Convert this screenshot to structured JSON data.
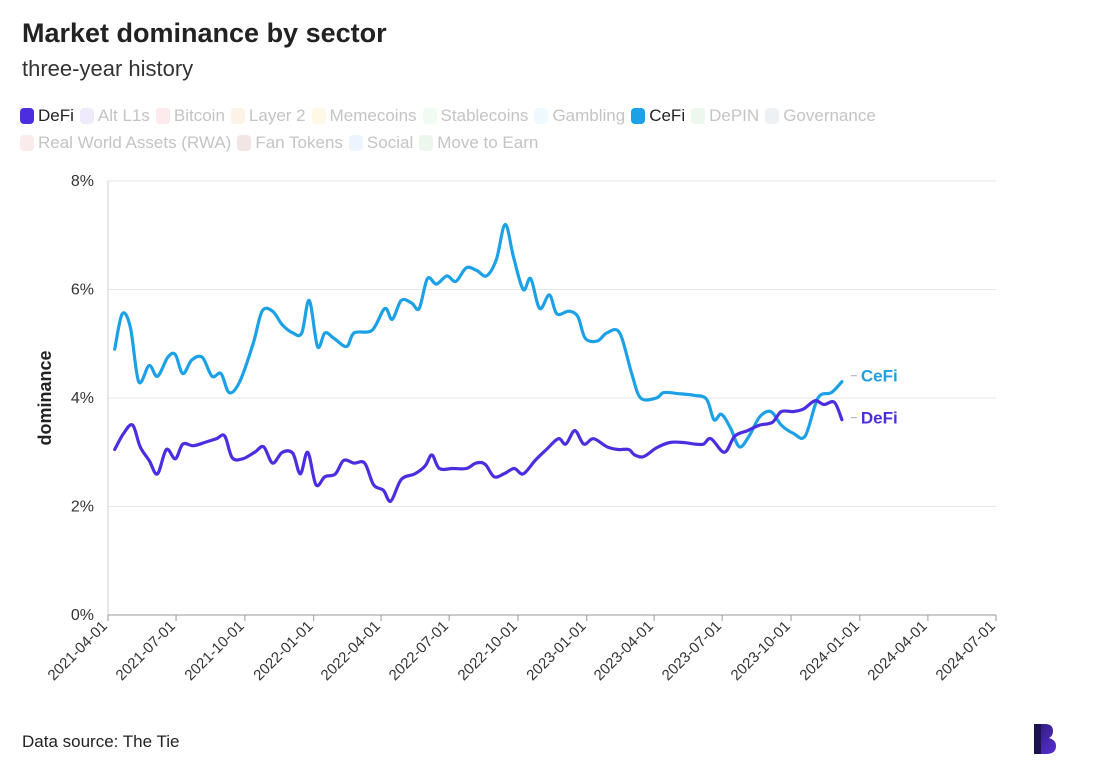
{
  "header": {
    "title": "Market dominance by sector",
    "subtitle": "three-year history"
  },
  "legend": [
    {
      "label": "DeFi",
      "color": "#4c2ee0",
      "active": true
    },
    {
      "label": "Alt L1s",
      "color": "#c6b6f5",
      "active": false
    },
    {
      "label": "Bitcoin",
      "color": "#f7b3b3",
      "active": false
    },
    {
      "label": "Layer 2",
      "color": "#f9cfa5",
      "active": false
    },
    {
      "label": "Memecoins",
      "color": "#fbe6a6",
      "active": false
    },
    {
      "label": "Stablecoins",
      "color": "#c9efcf",
      "active": false
    },
    {
      "label": "Gambling",
      "color": "#bfe9f7",
      "active": false
    },
    {
      "label": "CeFi",
      "color": "#1da1e6",
      "active": true
    },
    {
      "label": "DePIN",
      "color": "#b9e3c0",
      "active": false
    },
    {
      "label": "Governance",
      "color": "#b7cdd8",
      "active": false
    },
    {
      "label": "Real World Assets (RWA)",
      "color": "#f2b8b8",
      "active": false
    },
    {
      "label": "Fan Tokens",
      "color": "#cfa3a3",
      "active": false
    },
    {
      "label": "Social",
      "color": "#bcd6f7",
      "active": false
    },
    {
      "label": "Move to Earn",
      "color": "#bfe0bb",
      "active": false
    }
  ],
  "chart_data": {
    "type": "line",
    "ylabel": "dominance",
    "xlabel": "",
    "y_unit": "%",
    "ylim": [
      0,
      8
    ],
    "y_ticks": [
      "0%",
      "2%",
      "4%",
      "6%",
      "8%"
    ],
    "xlim": [
      "2021-04-01",
      "2024-07-01"
    ],
    "x_ticks": [
      "2021-04-01",
      "2021-07-01",
      "2021-10-01",
      "2022-01-01",
      "2022-04-01",
      "2022-07-01",
      "2022-10-01",
      "2023-01-01",
      "2023-04-01",
      "2023-07-01",
      "2023-10-01",
      "2024-01-01",
      "2024-04-01",
      "2024-07-01"
    ],
    "grid": true,
    "series": [
      {
        "name": "CeFi",
        "color": "#1da1e6",
        "points": [
          [
            "2021-04-10",
            4.9
          ],
          [
            "2021-04-20",
            5.55
          ],
          [
            "2021-05-01",
            5.3
          ],
          [
            "2021-05-12",
            4.3
          ],
          [
            "2021-05-26",
            4.6
          ],
          [
            "2021-06-06",
            4.4
          ],
          [
            "2021-06-20",
            4.75
          ],
          [
            "2021-06-30",
            4.8
          ],
          [
            "2021-07-10",
            4.45
          ],
          [
            "2021-07-22",
            4.7
          ],
          [
            "2021-08-05",
            4.75
          ],
          [
            "2021-08-18",
            4.4
          ],
          [
            "2021-08-30",
            4.45
          ],
          [
            "2021-09-10",
            4.1
          ],
          [
            "2021-09-24",
            4.3
          ],
          [
            "2021-10-12",
            5.0
          ],
          [
            "2021-10-24",
            5.6
          ],
          [
            "2021-11-07",
            5.6
          ],
          [
            "2021-11-20",
            5.35
          ],
          [
            "2021-12-04",
            5.2
          ],
          [
            "2021-12-16",
            5.2
          ],
          [
            "2021-12-26",
            5.8
          ],
          [
            "2022-01-06",
            4.95
          ],
          [
            "2022-01-16",
            5.2
          ],
          [
            "2022-01-28",
            5.1
          ],
          [
            "2022-02-14",
            4.95
          ],
          [
            "2022-02-24",
            5.2
          ],
          [
            "2022-03-20",
            5.25
          ],
          [
            "2022-04-06",
            5.65
          ],
          [
            "2022-04-16",
            5.45
          ],
          [
            "2022-04-28",
            5.8
          ],
          [
            "2022-05-12",
            5.75
          ],
          [
            "2022-05-22",
            5.65
          ],
          [
            "2022-06-02",
            6.2
          ],
          [
            "2022-06-14",
            6.1
          ],
          [
            "2022-06-28",
            6.25
          ],
          [
            "2022-07-10",
            6.15
          ],
          [
            "2022-07-24",
            6.4
          ],
          [
            "2022-08-07",
            6.35
          ],
          [
            "2022-08-20",
            6.25
          ],
          [
            "2022-09-02",
            6.55
          ],
          [
            "2022-09-14",
            7.2
          ],
          [
            "2022-09-25",
            6.6
          ],
          [
            "2022-10-08",
            6.0
          ],
          [
            "2022-10-18",
            6.2
          ],
          [
            "2022-10-30",
            5.65
          ],
          [
            "2022-11-12",
            5.9
          ],
          [
            "2022-11-22",
            5.55
          ],
          [
            "2022-12-08",
            5.6
          ],
          [
            "2022-12-20",
            5.5
          ],
          [
            "2022-12-30",
            5.1
          ],
          [
            "2023-01-15",
            5.05
          ],
          [
            "2023-01-28",
            5.2
          ],
          [
            "2023-02-14",
            5.2
          ],
          [
            "2023-03-02",
            4.45
          ],
          [
            "2023-03-14",
            4.0
          ],
          [
            "2023-04-04",
            4.0
          ],
          [
            "2023-04-14",
            4.1
          ],
          [
            "2023-05-04",
            4.08
          ],
          [
            "2023-05-24",
            4.05
          ],
          [
            "2023-06-10",
            3.98
          ],
          [
            "2023-06-20",
            3.6
          ],
          [
            "2023-06-30",
            3.7
          ],
          [
            "2023-07-12",
            3.45
          ],
          [
            "2023-07-24",
            3.1
          ],
          [
            "2023-08-06",
            3.3
          ],
          [
            "2023-08-20",
            3.65
          ],
          [
            "2023-09-04",
            3.75
          ],
          [
            "2023-09-18",
            3.5
          ],
          [
            "2023-10-04",
            3.35
          ],
          [
            "2023-10-20",
            3.3
          ],
          [
            "2023-11-06",
            4.0
          ],
          [
            "2023-11-24",
            4.1
          ],
          [
            "2023-12-08",
            4.3
          ]
        ]
      },
      {
        "name": "DeFi",
        "color": "#4c2ee0",
        "points": [
          [
            "2021-04-10",
            3.05
          ],
          [
            "2021-04-22",
            3.35
          ],
          [
            "2021-05-04",
            3.5
          ],
          [
            "2021-05-14",
            3.1
          ],
          [
            "2021-05-26",
            2.85
          ],
          [
            "2021-06-06",
            2.6
          ],
          [
            "2021-06-18",
            3.05
          ],
          [
            "2021-06-30",
            2.88
          ],
          [
            "2021-07-10",
            3.15
          ],
          [
            "2021-07-24",
            3.12
          ],
          [
            "2021-08-08",
            3.18
          ],
          [
            "2021-08-24",
            3.25
          ],
          [
            "2021-09-04",
            3.3
          ],
          [
            "2021-09-14",
            2.9
          ],
          [
            "2021-09-28",
            2.88
          ],
          [
            "2021-10-14",
            3.0
          ],
          [
            "2021-10-26",
            3.1
          ],
          [
            "2021-11-07",
            2.8
          ],
          [
            "2021-11-20",
            3.0
          ],
          [
            "2021-12-04",
            2.98
          ],
          [
            "2021-12-14",
            2.6
          ],
          [
            "2021-12-24",
            3.0
          ],
          [
            "2022-01-04",
            2.4
          ],
          [
            "2022-01-16",
            2.55
          ],
          [
            "2022-01-30",
            2.6
          ],
          [
            "2022-02-10",
            2.85
          ],
          [
            "2022-02-24",
            2.8
          ],
          [
            "2022-03-10",
            2.8
          ],
          [
            "2022-03-22",
            2.4
          ],
          [
            "2022-04-04",
            2.3
          ],
          [
            "2022-04-14",
            2.1
          ],
          [
            "2022-04-28",
            2.5
          ],
          [
            "2022-05-16",
            2.6
          ],
          [
            "2022-05-30",
            2.75
          ],
          [
            "2022-06-08",
            2.95
          ],
          [
            "2022-06-18",
            2.7
          ],
          [
            "2022-07-06",
            2.7
          ],
          [
            "2022-07-24",
            2.7
          ],
          [
            "2022-08-06",
            2.8
          ],
          [
            "2022-08-18",
            2.78
          ],
          [
            "2022-08-30",
            2.55
          ],
          [
            "2022-09-12",
            2.6
          ],
          [
            "2022-09-26",
            2.7
          ],
          [
            "2022-10-08",
            2.6
          ],
          [
            "2022-10-24",
            2.85
          ],
          [
            "2022-11-08",
            3.05
          ],
          [
            "2022-11-24",
            3.25
          ],
          [
            "2022-12-04",
            3.15
          ],
          [
            "2022-12-16",
            3.4
          ],
          [
            "2022-12-28",
            3.15
          ],
          [
            "2023-01-10",
            3.25
          ],
          [
            "2023-01-28",
            3.1
          ],
          [
            "2023-02-12",
            3.05
          ],
          [
            "2023-02-26",
            3.05
          ],
          [
            "2023-03-06",
            2.95
          ],
          [
            "2023-03-18",
            2.92
          ],
          [
            "2023-04-04",
            3.08
          ],
          [
            "2023-04-22",
            3.18
          ],
          [
            "2023-05-10",
            3.18
          ],
          [
            "2023-05-26",
            3.15
          ],
          [
            "2023-06-06",
            3.15
          ],
          [
            "2023-06-16",
            3.25
          ],
          [
            "2023-07-04",
            3.0
          ],
          [
            "2023-07-18",
            3.3
          ],
          [
            "2023-08-04",
            3.4
          ],
          [
            "2023-08-20",
            3.5
          ],
          [
            "2023-09-06",
            3.55
          ],
          [
            "2023-09-18",
            3.75
          ],
          [
            "2023-10-04",
            3.75
          ],
          [
            "2023-10-18",
            3.8
          ],
          [
            "2023-11-02",
            3.95
          ],
          [
            "2023-11-14",
            3.88
          ],
          [
            "2023-11-28",
            3.92
          ],
          [
            "2023-12-08",
            3.6
          ]
        ]
      }
    ]
  },
  "footer": {
    "source": "Data source: The Tie"
  }
}
